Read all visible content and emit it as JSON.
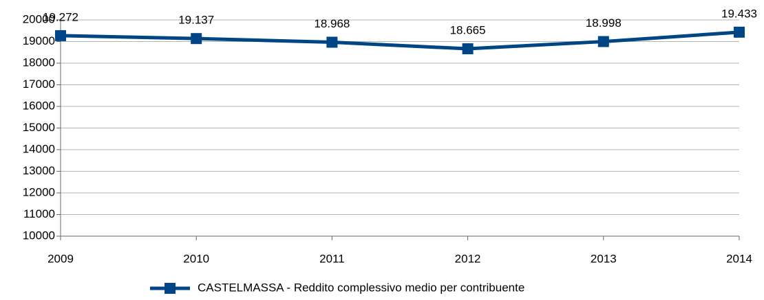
{
  "chart_data": {
    "type": "line",
    "categories": [
      "2009",
      "2010",
      "2011",
      "2012",
      "2013",
      "2014"
    ],
    "series": [
      {
        "name": "CASTELMASSA - Reddito complessivo medio per contribuente",
        "color": "#004586",
        "values": [
          19272,
          19137,
          18968,
          18665,
          18998,
          19433
        ],
        "value_labels": [
          "19.272",
          "19.137",
          "18.968",
          "18.665",
          "18.998",
          "19.433"
        ]
      }
    ],
    "ylim": [
      10000,
      20000
    ],
    "yticks": [
      10000,
      11000,
      12000,
      13000,
      14000,
      15000,
      16000,
      17000,
      18000,
      19000,
      20000
    ],
    "grid": true,
    "legend": "bottom"
  }
}
